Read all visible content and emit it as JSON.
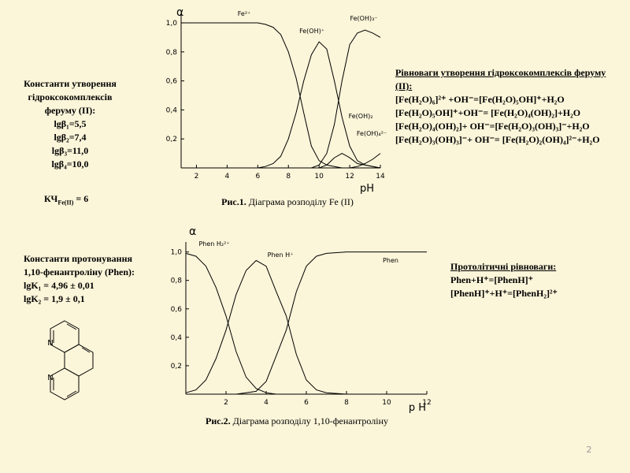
{
  "chart_data": [
    {
      "type": "line",
      "ylabel": "α",
      "xlabel": "pH",
      "caption_bold": "Рис.1.",
      "caption": " Діаграма розподілу Fe (ІІ)",
      "x": [
        1,
        2,
        3,
        4,
        5,
        6,
        6.5,
        7,
        7.5,
        8,
        8.5,
        9,
        9.5,
        10,
        10.5,
        11,
        11.5,
        12,
        12.5,
        13,
        13.5,
        14
      ],
      "series": [
        {
          "name": "Fe²⁺",
          "color": "#000000",
          "values": [
            1,
            1,
            1,
            1,
            1,
            1,
            0.99,
            0.97,
            0.92,
            0.8,
            0.62,
            0.38,
            0.15,
            0.05,
            0.02,
            0.01,
            0,
            0,
            0,
            0,
            0,
            0
          ]
        },
        {
          "name": "Fe(OH)⁺",
          "color": "#000000",
          "values": [
            0,
            0,
            0,
            0,
            0,
            0,
            0.01,
            0.03,
            0.08,
            0.2,
            0.38,
            0.6,
            0.78,
            0.87,
            0.82,
            0.6,
            0.35,
            0.15,
            0.05,
            0.02,
            0.01,
            0
          ]
        },
        {
          "name": "Fe(OH)₃⁻",
          "color": "#000000",
          "values": [
            0,
            0,
            0,
            0,
            0,
            0,
            0,
            0,
            0,
            0,
            0,
            0,
            0,
            0.02,
            0.1,
            0.3,
            0.6,
            0.85,
            0.93,
            0.95,
            0.93,
            0.9
          ]
        },
        {
          "name": "Fe(OH)₂",
          "color": "#000000",
          "values": [
            0,
            0,
            0,
            0,
            0,
            0,
            0,
            0,
            0,
            0,
            0,
            0,
            0,
            0,
            0.02,
            0.07,
            0.1,
            0.07,
            0.03,
            0.02,
            0.01,
            0
          ]
        },
        {
          "name": "Fe(OH)₄²⁻",
          "color": "#000000",
          "values": [
            0,
            0,
            0,
            0,
            0,
            0,
            0,
            0,
            0,
            0,
            0,
            0,
            0,
            0,
            0,
            0,
            0,
            0,
            0.01,
            0.03,
            0.06,
            0.1
          ]
        }
      ],
      "xlim": [
        1,
        14
      ],
      "ylim": [
        0,
        1.06
      ],
      "xticks": [
        2,
        4,
        6,
        8,
        10,
        12,
        14
      ],
      "yticks": [
        {
          "value": 0.2,
          "label": "0,2"
        },
        {
          "value": 0.4,
          "label": "0,4"
        },
        {
          "value": 0.6,
          "label": "0,6"
        },
        {
          "value": 0.8,
          "label": "0,8"
        },
        {
          "value": 1.0,
          "label": "1,0"
        }
      ]
    },
    {
      "type": "line",
      "ylabel": "α",
      "xlabel": "p H",
      "caption_bold": "Рис.2.",
      "caption": " Діаграма розподілу 1,10-фенантроліну",
      "x": [
        0,
        0.5,
        1,
        1.5,
        2,
        2.5,
        3,
        3.5,
        4,
        4.5,
        5,
        5.5,
        6,
        6.5,
        7,
        8,
        10,
        12
      ],
      "series": [
        {
          "name": "Phen H₂²⁺",
          "color": "#000000",
          "values": [
            0.99,
            0.97,
            0.9,
            0.75,
            0.55,
            0.3,
            0.12,
            0.04,
            0.01,
            0,
            0,
            0,
            0,
            0,
            0,
            0,
            0,
            0
          ]
        },
        {
          "name": "Phen H⁺",
          "color": "#000000",
          "values": [
            0.01,
            0.03,
            0.1,
            0.25,
            0.45,
            0.7,
            0.87,
            0.94,
            0.9,
            0.72,
            0.55,
            0.28,
            0.1,
            0.03,
            0.01,
            0,
            0,
            0
          ]
        },
        {
          "name": "Phen",
          "color": "#000000",
          "values": [
            0,
            0,
            0,
            0,
            0,
            0,
            0.01,
            0.02,
            0.09,
            0.27,
            0.45,
            0.72,
            0.9,
            0.97,
            0.99,
            1,
            1,
            1
          ]
        }
      ],
      "xlim": [
        0,
        12
      ],
      "ylim": [
        0,
        1.07
      ],
      "xticks": [
        2,
        4,
        6,
        8,
        10,
        12
      ],
      "yticks": [
        {
          "value": 0.2,
          "label": "0,2"
        },
        {
          "value": 0.4,
          "label": "0,4"
        },
        {
          "value": 0.6,
          "label": "0,6"
        },
        {
          "value": 0.8,
          "label": "0,8"
        },
        {
          "value": 1.0,
          "label": "1,0"
        }
      ]
    }
  ],
  "left_constants": {
    "lines": [
      "Константи утворення",
      "гідроксокомплексів",
      "феруму (ІІ):",
      "lgβ₁=5,5",
      "lgβ₂=7,4",
      "lgβ₃=11,0",
      "lgβ₄=10,0"
    ],
    "kch": {
      "main": "КЧ",
      "sub": "Fe(II)",
      "rest": " = 6"
    }
  },
  "right_equilibria": {
    "heading": "Рівноваги утворення гідроксокомплексів феруму (ІІ):",
    "lines": [
      "[Fe(H₂O)₆]²⁺ +OH⁻=[Fe(H₂O)₅OH]⁺+H₂O",
      "[Fe(H₂O)₅OH]⁺+OH⁻= [Fe(H₂O)₄(OH)₂]+H₂O",
      "[Fe(H₂O)₄(OH)₂]+ OH⁻=[Fe(H₂O)₃(OH)₃]⁻+H₂O",
      "[Fe(H₂O)₃(OH)₃]⁻+ OH⁻= [Fe(H₂O)₂(OH)₄]²⁻+H₂O"
    ]
  },
  "left_protonation": {
    "lines": [
      "Константи протонування",
      "1,10-фенантроліну (Phen):",
      "lgK₁ = 4,96 ± 0,01",
      "lgK₂ = 1,9 ± 0,1"
    ]
  },
  "structure": {
    "atoms": [
      "N",
      "N"
    ]
  },
  "right_protolytic": {
    "heading": "Протолітичні рівноваги:",
    "lines": [
      "Phen+H⁺=[PhenH]⁺",
      "[PhenH]⁺+H⁺=[PhenH₂]²⁺"
    ]
  },
  "page_number": "2"
}
